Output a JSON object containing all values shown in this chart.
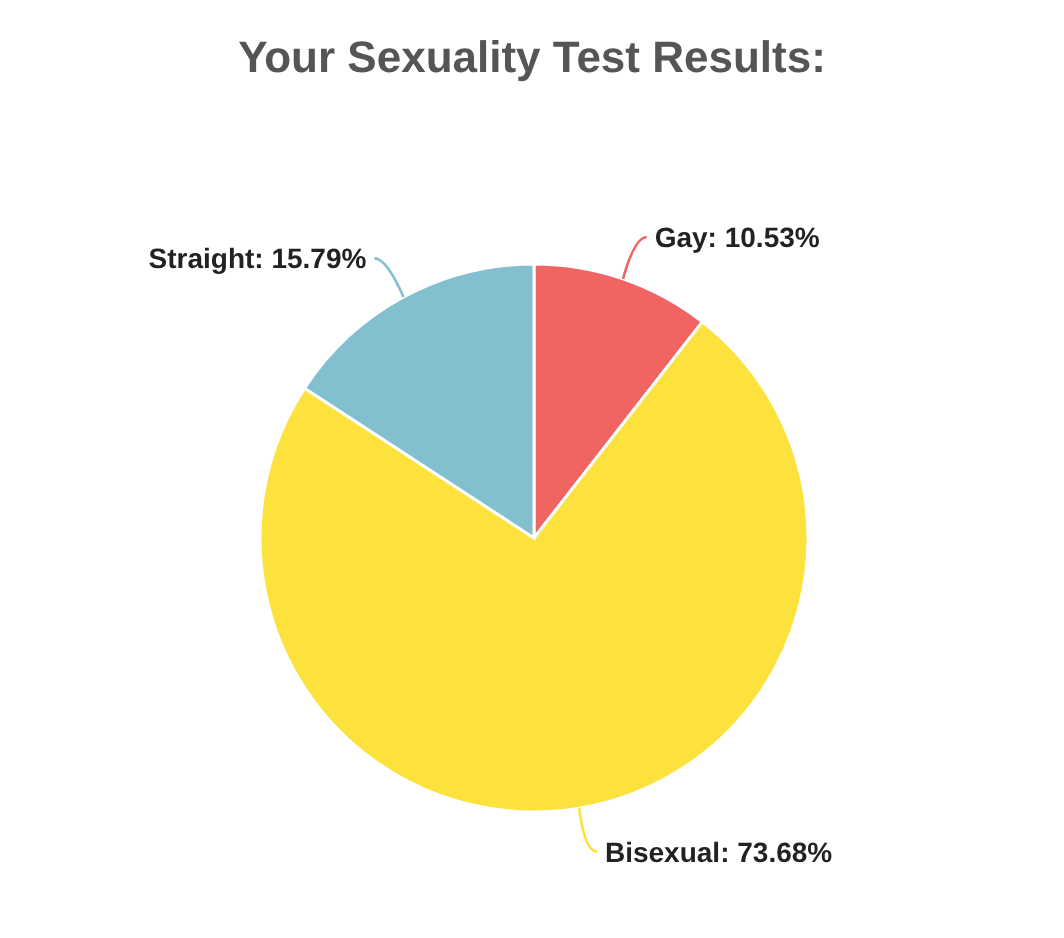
{
  "chart_data": {
    "type": "pie",
    "title": "Your Sexuality Test Results:",
    "categories": [
      "Gay",
      "Bisexual",
      "Straight"
    ],
    "values": [
      10.53,
      73.68,
      15.79
    ],
    "colors": [
      "#f06461",
      "#fde23e",
      "#82bfcf"
    ],
    "value_labels": [
      "10.53%",
      "73.68%",
      "15.79%"
    ],
    "legend": false
  }
}
